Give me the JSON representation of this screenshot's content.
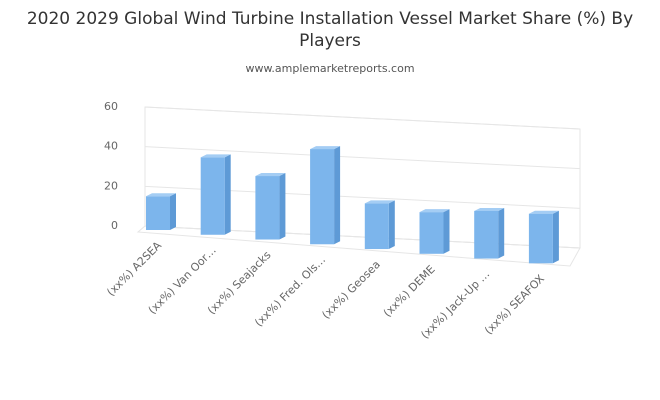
{
  "chart_data": {
    "type": "bar3d",
    "title": "2020 2029 Global Wind Turbine Installation Vessel Market Share (%) By Players",
    "subtitle": "www.amplemarketreports.com",
    "categories": [
      "(xx%) A2SEA",
      "(xx%) Van Oor…",
      "(xx%) Seajacks",
      "(xx%) Fred. Ols…",
      "(xx%) Geosea",
      "(xx%) DEME",
      "(xx%) Jack-Up …",
      "(xx%) SEAFOX"
    ],
    "values": [
      17,
      39,
      32,
      48,
      23,
      21,
      24,
      25
    ],
    "color": "#7cb5ec",
    "ylim": [
      0,
      60
    ],
    "yticks": [
      0,
      20,
      40,
      60
    ],
    "grid": true
  }
}
